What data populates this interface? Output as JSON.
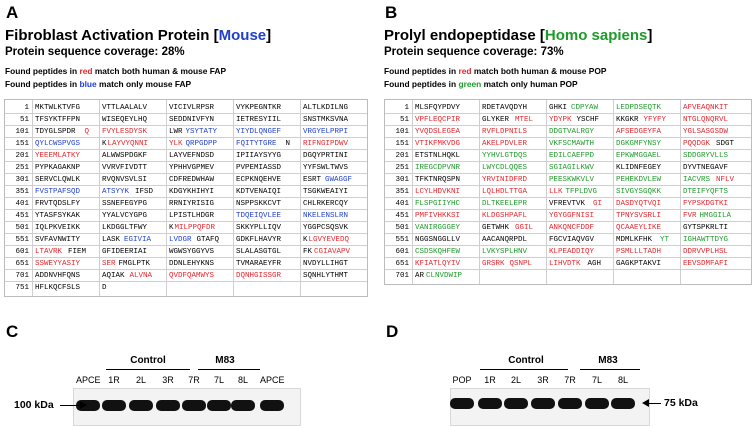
{
  "panelA": {
    "letter": "A",
    "title_pre": "Fibroblast Activation Protein [",
    "species": "Mouse",
    "title_post": "]",
    "coverage": "Protein sequence coverage:  28%",
    "note1_pre": "Found peptides in ",
    "note1_color": "red",
    "note1_post": " match both human & mouse FAP",
    "note2_pre": "Found peptides in ",
    "note2_color": "blue",
    "note2_post": " match only mouse FAP",
    "rows": [
      {
        "n": "1",
        "segs": [
          [
            "MKTWLKTVFG",
            "k"
          ],
          [
            "VTTLAALALV",
            "k"
          ],
          [
            "VICIVLRPSR",
            "k"
          ],
          [
            "VYKPEGNTKR",
            "k"
          ],
          [
            "ALTLKDILNG",
            "k"
          ]
        ]
      },
      {
        "n": "51",
        "segs": [
          [
            "TFSYKTFFPN",
            "k"
          ],
          [
            "WISEQEYLHQ",
            "k"
          ],
          [
            "SEDDNIVFYN",
            "k"
          ],
          [
            "IETRESYIIL",
            "k"
          ],
          [
            "SNSTMKSVNA",
            "k"
          ]
        ]
      },
      {
        "n": "101",
        "segs": [
          [
            "TDYGLSPDR",
            "k"
          ],
          [
            "Q",
            "r"
          ],
          [
            "FVYLESDYSK",
            "r"
          ],
          [
            "LWR",
            "k"
          ],
          [
            "YSYTATY",
            "b"
          ],
          [
            "YIYDLQNGEF",
            "b"
          ],
          [
            "VRGYELPRPI",
            "b"
          ]
        ]
      },
      {
        "n": "151",
        "segs": [
          [
            "QYLCWSPVGS",
            "b"
          ],
          [
            "K",
            "k"
          ],
          [
            "LAYVYQNNI",
            "r"
          ],
          [
            "YLK",
            "r"
          ],
          [
            "QRPGDPP",
            "b"
          ],
          [
            "FQITYTGRE",
            "b"
          ],
          [
            "N",
            "k"
          ],
          [
            "RIFNGIPDWV",
            "r"
          ]
        ]
      },
      {
        "n": "201",
        "segs": [
          [
            "YEEEMLATKY",
            "r"
          ],
          [
            "ALWWSPDGKF",
            "k"
          ],
          [
            "LAYVEFNDSD",
            "k"
          ],
          [
            "IPIIAYSYYG",
            "k"
          ],
          [
            "DGQYPRTINI",
            "k"
          ]
        ]
      },
      {
        "n": "251",
        "segs": [
          [
            "PYPKAGAKNP",
            "k"
          ],
          [
            "VVRVFIVDTT",
            "k"
          ],
          [
            "YPHHVGPMEV",
            "k"
          ],
          [
            "PVPEMIASSD",
            "k"
          ],
          [
            "YYFSWLTWVS",
            "k"
          ]
        ]
      },
      {
        "n": "301",
        "segs": [
          [
            "SERVCLQWLK",
            "k"
          ],
          [
            "RVQNVSVLSI",
            "k"
          ],
          [
            "CDFREDWHAW",
            "k"
          ],
          [
            "ECPKNQEHVE",
            "k"
          ],
          [
            "ESRT",
            "k"
          ],
          [
            "GWAGGF",
            "b"
          ]
        ]
      },
      {
        "n": "351",
        "segs": [
          [
            "FVSTPAFSQD",
            "b"
          ],
          [
            "ATSYYK",
            "b"
          ],
          [
            "IFSD",
            "k"
          ],
          [
            "KDGYKHIHYI",
            "k"
          ],
          [
            "KDTVENAIQI",
            "k"
          ],
          [
            "TSGKWEAIYI",
            "k"
          ]
        ]
      },
      {
        "n": "401",
        "segs": [
          [
            "FRVTQDSLFY",
            "k"
          ],
          [
            "SSNEFEGYPG",
            "k"
          ],
          [
            "RRNIYRISIG",
            "k"
          ],
          [
            "NSPPSKKCVT",
            "k"
          ],
          [
            "CHLRKERCQY",
            "k"
          ]
        ]
      },
      {
        "n": "451",
        "segs": [
          [
            "YTASFSYKAK",
            "k"
          ],
          [
            "YYALVCYGPG",
            "k"
          ],
          [
            "LPISTLHDGR",
            "k"
          ],
          [
            "TDQEIQVLEE",
            "b"
          ],
          [
            "NKELENSLRN",
            "b"
          ]
        ]
      },
      {
        "n": "501",
        "segs": [
          [
            "IQLPKVEIKK",
            "k"
          ],
          [
            "LKDGGLTFWY",
            "k"
          ],
          [
            "K",
            "k"
          ],
          [
            "MILPPQFDR",
            "r"
          ],
          [
            "SKKYPLLIQV",
            "k"
          ],
          [
            "YGGPCSQSVK",
            "k"
          ]
        ]
      },
      {
        "n": "551",
        "segs": [
          [
            "SVFAVNWITY",
            "k"
          ],
          [
            "LASK",
            "k"
          ],
          [
            "EGIVIA",
            "b"
          ],
          [
            "LVDGR",
            "b"
          ],
          [
            "GTAFQ",
            "k"
          ],
          [
            "GDKFLHAVYR",
            "k"
          ],
          [
            "K",
            "k"
          ],
          [
            "LGVYEVEDQ",
            "r"
          ]
        ]
      },
      {
        "n": "601",
        "segs": [
          [
            "LTAVRK",
            "r"
          ],
          [
            "FIEM",
            "k"
          ],
          [
            "GFIDEERIAI",
            "k"
          ],
          [
            "WGWSYGGYVS",
            "k"
          ],
          [
            "SLALASGTGL",
            "k"
          ],
          [
            "FK",
            "k"
          ],
          [
            "CGIAVAPV",
            "r"
          ]
        ]
      },
      {
        "n": "651",
        "segs": [
          [
            "SSWEYYASIY",
            "r"
          ],
          [
            "SER",
            "r"
          ],
          [
            "FMGLPTK",
            "k"
          ],
          [
            "DDNLEHYKNS",
            "k"
          ],
          [
            "TVMARAEYFR",
            "k"
          ],
          [
            "NVDYLLIHGT",
            "k"
          ]
        ]
      },
      {
        "n": "701",
        "segs": [
          [
            "ADDNVHFQNS",
            "k"
          ],
          [
            "AQIAK",
            "k"
          ],
          [
            "ALVNA",
            "r"
          ],
          [
            "QVDFQAMWYS",
            "r"
          ],
          [
            "DQNHGISSGR",
            "r"
          ],
          [
            "SQNHLYTHMT",
            "k"
          ]
        ]
      },
      {
        "n": "751",
        "segs": [
          [
            "HFLKQCFSLS",
            "k"
          ],
          [
            "D",
            "k"
          ]
        ]
      }
    ]
  },
  "panelB": {
    "letter": "B",
    "title_pre": "Prolyl endopeptidase [",
    "species": "Homo sapiens",
    "title_post": "]",
    "coverage": "Protein sequence coverage:  73%",
    "note1_pre": "Found peptides in ",
    "note1_color": "red",
    "note1_post": " match both human & mouse POP",
    "note2_pre": "Found peptides in ",
    "note2_color": "green",
    "note2_post": " match only human POP",
    "rows": [
      {
        "n": "1",
        "segs": [
          [
            "MLSFQYPDVY",
            "k"
          ],
          [
            "RDETAVQDYH",
            "k"
          ],
          [
            "GHKI",
            "k"
          ],
          [
            "CDPYAW",
            "g"
          ],
          [
            "LEDPDSEQTK",
            "g"
          ],
          [
            "AFVEAQNKIT",
            "r"
          ]
        ]
      },
      {
        "n": "51",
        "segs": [
          [
            "VPFLEQCPIR",
            "r"
          ],
          [
            "GLYKER",
            "k"
          ],
          [
            "MTEL",
            "r"
          ],
          [
            "YDYPK",
            "r"
          ],
          [
            "YSCHF",
            "k"
          ],
          [
            "KKGKR",
            "k"
          ],
          [
            "YFYFY",
            "r"
          ],
          [
            "NTGLQNQRVL",
            "r"
          ]
        ]
      },
      {
        "n": "101",
        "segs": [
          [
            "YVQDSLEGEA",
            "r"
          ],
          [
            "RVFLDPNILS",
            "r"
          ],
          [
            "DDGTVALRGY",
            "g"
          ],
          [
            "AFSEDGEYFA",
            "r"
          ],
          [
            "YGLSASGSDW",
            "r"
          ]
        ]
      },
      {
        "n": "151",
        "segs": [
          [
            "VTIKFMKVDG",
            "r"
          ],
          [
            "AKELPDVLER",
            "r"
          ],
          [
            "VKFSCMAWTH",
            "g"
          ],
          [
            "DGKGMFYNSY",
            "g"
          ],
          [
            "PQQDGK",
            "r"
          ],
          [
            "SDGT",
            "k"
          ]
        ]
      },
      {
        "n": "201",
        "segs": [
          [
            "ETSTNLHQKL",
            "k"
          ],
          [
            "YYHVLGTDQS",
            "g"
          ],
          [
            "EDILCAEFPD",
            "g"
          ],
          [
            "EPKWMGGAEL",
            "g"
          ],
          [
            "SDDGRYVLLS",
            "g"
          ]
        ]
      },
      {
        "n": "251",
        "segs": [
          [
            "IREGCDPVNR",
            "g"
          ],
          [
            "LWYCDLQQES",
            "g"
          ],
          [
            "SGIAGILKWV",
            "g"
          ],
          [
            "KLIDNFEGEY",
            "k"
          ],
          [
            "DYVTNEGAVF",
            "k"
          ]
        ]
      },
      {
        "n": "301",
        "segs": [
          [
            "TFKTNRQSPN",
            "k"
          ],
          [
            "YRVINIDFRD",
            "r"
          ],
          [
            "PEESKWKVLV",
            "g"
          ],
          [
            "PEHEKDVLEW",
            "g"
          ],
          [
            "IACVRS",
            "g"
          ],
          [
            "NFLV",
            "r"
          ]
        ]
      },
      {
        "n": "351",
        "segs": [
          [
            "LCYLHDVKNI",
            "r"
          ],
          [
            "LQLHDLTTGA",
            "r"
          ],
          [
            "LLK",
            "r"
          ],
          [
            "TFPLDVG",
            "g"
          ],
          [
            "SIVGYSGQKK",
            "g"
          ],
          [
            "DTEIFYQFTS",
            "g"
          ]
        ]
      },
      {
        "n": "401",
        "segs": [
          [
            "FLSPGIIYHC",
            "g"
          ],
          [
            "DLTKEELEPR",
            "g"
          ],
          [
            "VFREVTVK",
            "k"
          ],
          [
            "GI",
            "r"
          ],
          [
            "DASDYQTVQI",
            "r"
          ],
          [
            "FYPSKDGTKI",
            "r"
          ]
        ]
      },
      {
        "n": "451",
        "segs": [
          [
            "PMFIVHKKSI",
            "r"
          ],
          [
            "KLDGSHPAFL",
            "r"
          ],
          [
            "YGYGGFNISI",
            "r"
          ],
          [
            "TPNYSVSRLI",
            "r"
          ],
          [
            "FVR",
            "r"
          ],
          [
            "HMGGILA",
            "g"
          ]
        ]
      },
      {
        "n": "501",
        "segs": [
          [
            "VANIRGGGEY",
            "g"
          ],
          [
            "GETWHK",
            "k"
          ],
          [
            "GGIL",
            "r"
          ],
          [
            "ANKQNCFDDF",
            "r"
          ],
          [
            "QCAAEYLIKE",
            "r"
          ],
          [
            "GYTSPKRLTI",
            "k"
          ]
        ]
      },
      {
        "n": "551",
        "segs": [
          [
            "NGGSNGGLLV",
            "k"
          ],
          [
            "AACANQRPDL",
            "k"
          ],
          [
            "FGCVIAQVGV",
            "k"
          ],
          [
            "MDMLKFHK",
            "k"
          ],
          [
            "YT",
            "g"
          ],
          [
            "IGHAWTTDYG",
            "g"
          ]
        ]
      },
      {
        "n": "601",
        "segs": [
          [
            "CSDSKQHFEW",
            "g"
          ],
          [
            "LVKYSPLHNV",
            "g"
          ],
          [
            "KLPEADDIQY",
            "r"
          ],
          [
            "PSMLLLTADH",
            "r"
          ],
          [
            "DDRVVPLHSL",
            "r"
          ]
        ]
      },
      {
        "n": "651",
        "segs": [
          [
            "KFIATLQYIV",
            "r"
          ],
          [
            "GRSRK",
            "r"
          ],
          [
            "QSNPL",
            "r"
          ],
          [
            "LIHVDTK",
            "r"
          ],
          [
            "AGH",
            "k"
          ],
          [
            "GAGKPTAKVI",
            "k"
          ],
          [
            "EEVSDMFAFI",
            "r"
          ]
        ]
      },
      {
        "n": "701",
        "segs": [
          [
            "AR",
            "k"
          ],
          [
            "CLNVDWIP",
            "g"
          ]
        ]
      }
    ]
  },
  "panelC": {
    "letter": "C",
    "group_control": "Control",
    "group_m83": "M83",
    "lanes": [
      "APCE",
      "1R",
      "2L",
      "3R",
      "7R",
      "7L",
      "8L",
      "APCE"
    ],
    "marker": "100 kDa"
  },
  "panelD": {
    "letter": "D",
    "group_control": "Control",
    "group_m83": "M83",
    "lanes": [
      "POP",
      "1R",
      "2L",
      "3R",
      "7R",
      "7L",
      "8L"
    ],
    "marker": "75 kDa"
  }
}
